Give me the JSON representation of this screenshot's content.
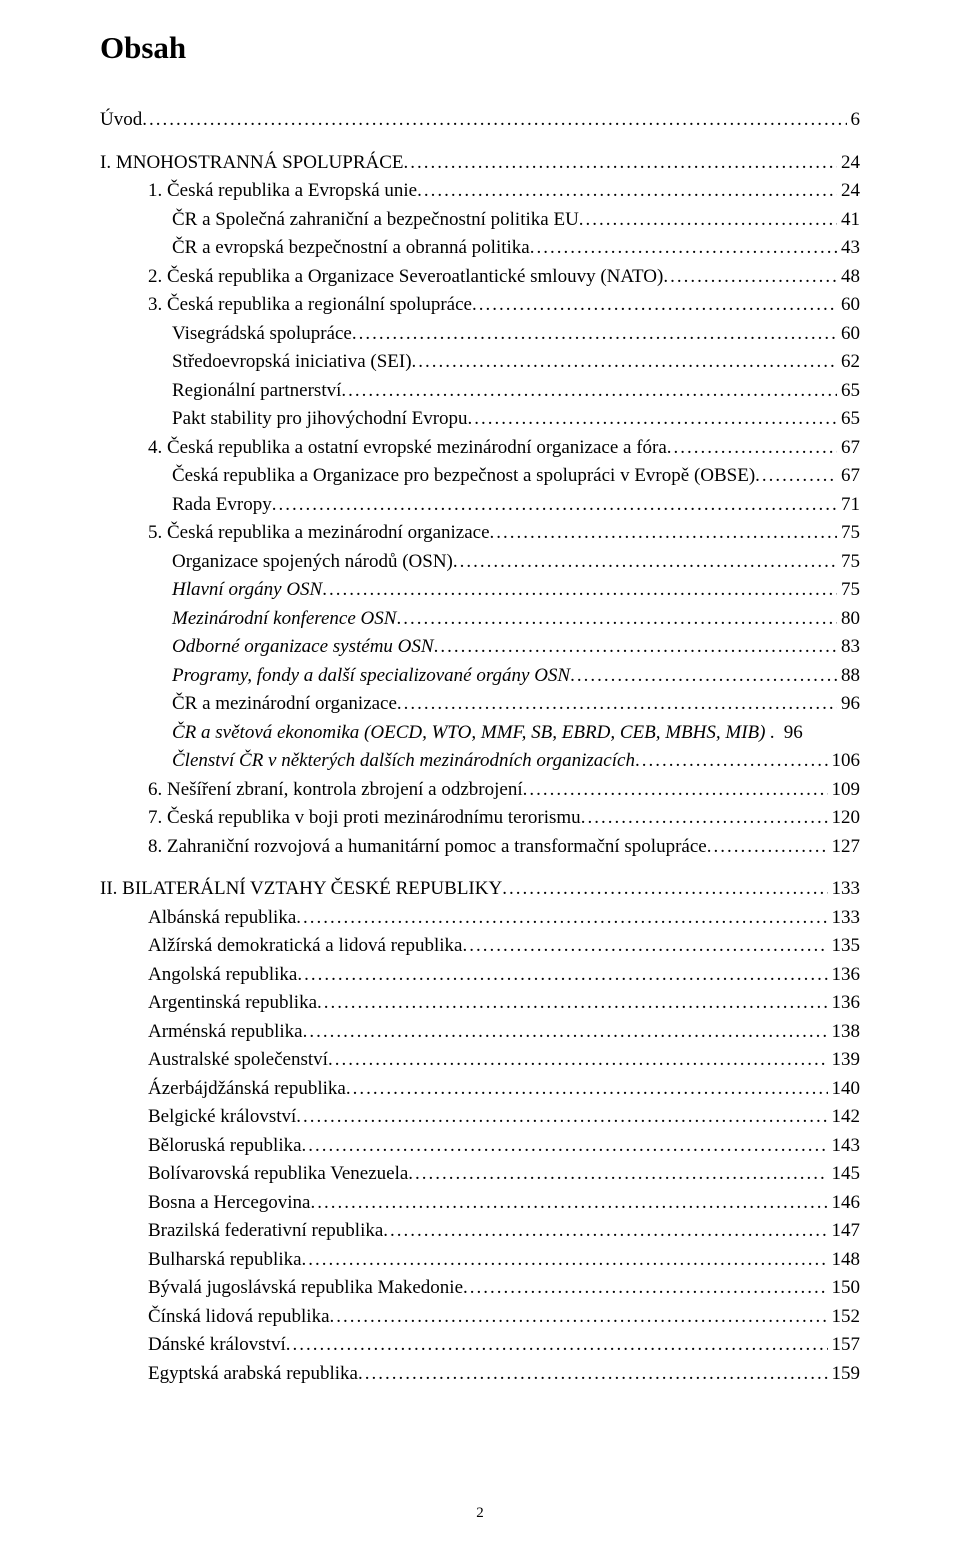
{
  "title": "Obsah",
  "footer_page": "2",
  "toc": [
    {
      "label": "Úvod",
      "page": "6",
      "indent": 0,
      "italic": false
    },
    {
      "label": "I. MNOHOSTRANNÁ SPOLUPRÁCE",
      "page": "24",
      "indent": 0,
      "italic": false
    },
    {
      "label": "1. Česká republika a Evropská unie",
      "page": "24",
      "indent": 1,
      "italic": false
    },
    {
      "label": "ČR a Společná zahraniční a bezpečnostní politika EU",
      "page": "41",
      "indent": 2,
      "italic": false
    },
    {
      "label": "ČR a evropská bezpečnostní a obranná politika",
      "page": "43",
      "indent": 2,
      "italic": false
    },
    {
      "label": "2. Česká republika a Organizace Severoatlantické smlouvy (NATO)",
      "page": "48",
      "indent": 1,
      "italic": false
    },
    {
      "label": "3. Česká republika a regionální spolupráce",
      "page": "60",
      "indent": 1,
      "italic": false
    },
    {
      "label": "Visegrádská spolupráce",
      "page": "60",
      "indent": 2,
      "italic": false
    },
    {
      "label": "Středoevropská iniciativa (SEI)",
      "page": "62",
      "indent": 2,
      "italic": false
    },
    {
      "label": "Regionální partnerství",
      "page": "65",
      "indent": 2,
      "italic": false
    },
    {
      "label": "Pakt stability pro jihovýchodní Evropu",
      "page": "65",
      "indent": 2,
      "italic": false
    },
    {
      "label": "4. Česká republika a ostatní evropské mezinárodní organizace a fóra",
      "page": "67",
      "indent": 1,
      "italic": false
    },
    {
      "label": "Česká republika a Organizace pro bezpečnost a spolupráci v Evropě (OBSE)",
      "page": "67",
      "indent": 2,
      "italic": false
    },
    {
      "label": "Rada Evropy",
      "page": "71",
      "indent": 2,
      "italic": false
    },
    {
      "label": "5. Česká republika a mezinárodní organizace",
      "page": "75",
      "indent": 1,
      "italic": false
    },
    {
      "label": "Organizace spojených národů (OSN)",
      "page": "75",
      "indent": 2,
      "italic": false
    },
    {
      "label": "Hlavní orgány OSN",
      "page": "75",
      "indent": 2,
      "italic": true
    },
    {
      "label": "Mezinárodní konference OSN",
      "page": "80",
      "indent": 2,
      "italic": true
    },
    {
      "label": "Odborné organizace systému OSN",
      "page": "83",
      "indent": 2,
      "italic": true
    },
    {
      "label": "Programy, fondy a další specializované orgány OSN",
      "page": "88",
      "indent": 2,
      "italic": true
    },
    {
      "label": "ČR a mezinárodní organizace",
      "page": "96",
      "indent": 2,
      "italic": false
    },
    {
      "label": "ČR a světová ekonomika (OECD, WTO, MMF, SB, EBRD, CEB, MBHS, MIB) .",
      "page": "96",
      "indent": 2,
      "italic": true,
      "nodots": true
    },
    {
      "label": "Členství ČR v některých dalších mezinárodních organizacích",
      "page": "106",
      "indent": 2,
      "italic": true
    },
    {
      "label": "6. Nešíření zbraní, kontrola zbrojení a odzbrojení",
      "page": "109",
      "indent": 1,
      "italic": false
    },
    {
      "label": "7. Česká republika v boji proti mezinárodnímu terorismu",
      "page": "120",
      "indent": 1,
      "italic": false
    },
    {
      "label": "8. Zahraniční rozvojová a humanitární pomoc a transformační spolupráce",
      "page": "127",
      "indent": 1,
      "italic": false
    },
    {
      "label": "II. BILATERÁLNÍ VZTAHY ČESKÉ REPUBLIKY",
      "page": "133",
      "indent": 0,
      "italic": false
    },
    {
      "label": "Albánská republika",
      "page": "133",
      "indent": 1,
      "italic": false
    },
    {
      "label": "Alžírská demokratická a lidová republika",
      "page": "135",
      "indent": 1,
      "italic": false
    },
    {
      "label": "Angolská republika",
      "page": "136",
      "indent": 1,
      "italic": false
    },
    {
      "label": "Argentinská republika",
      "page": "136",
      "indent": 1,
      "italic": false
    },
    {
      "label": "Arménská republika ",
      "page": "138",
      "indent": 1,
      "italic": false
    },
    {
      "label": "Australské společenství",
      "page": "139",
      "indent": 1,
      "italic": false
    },
    {
      "label": "Ázerbájdžánská republika",
      "page": "140",
      "indent": 1,
      "italic": false
    },
    {
      "label": "Belgické království",
      "page": "142",
      "indent": 1,
      "italic": false
    },
    {
      "label": "Běloruská republika",
      "page": "143",
      "indent": 1,
      "italic": false
    },
    {
      "label": "Bolívarovská republika Venezuela",
      "page": "145",
      "indent": 1,
      "italic": false
    },
    {
      "label": "Bosna a Hercegovina ",
      "page": "146",
      "indent": 1,
      "italic": false
    },
    {
      "label": "Brazilská federativní republika",
      "page": "147",
      "indent": 1,
      "italic": false
    },
    {
      "label": "Bulharská republika",
      "page": "148",
      "indent": 1,
      "italic": false
    },
    {
      "label": "Bývalá jugoslávská republika Makedonie",
      "page": "150",
      "indent": 1,
      "italic": false
    },
    {
      "label": "Čínská lidová republika",
      "page": "152",
      "indent": 1,
      "italic": false
    },
    {
      "label": "Dánské království",
      "page": "157",
      "indent": 1,
      "italic": false
    },
    {
      "label": "Egyptská arabská republika",
      "page": "159",
      "indent": 1,
      "italic": false
    }
  ]
}
